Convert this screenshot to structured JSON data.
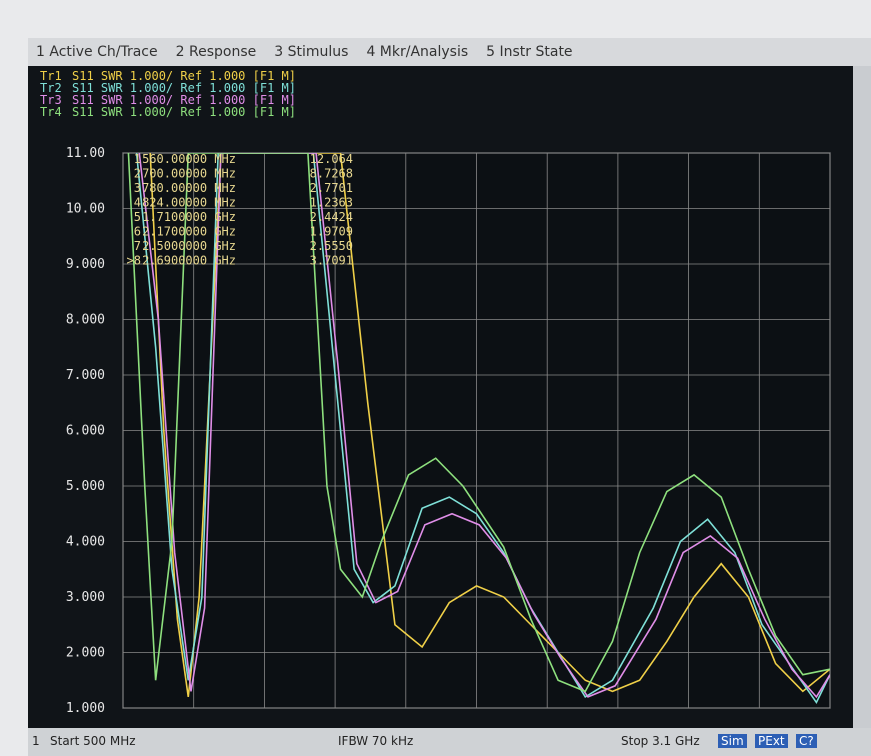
{
  "menu": [
    "1 Active Ch/Trace",
    "2 Response",
    "3 Stimulus",
    "4 Mkr/Analysis",
    "5 Instr State"
  ],
  "traces": [
    {
      "name": "Tr1",
      "text": "S11  SWR 1.000/ Ref 1.000 [F1 M]",
      "color": "#f0d048"
    },
    {
      "name": "Tr2",
      "text": "S11  SWR 1.000/ Ref 1.000 [F1 M]",
      "color": "#7fe0d8"
    },
    {
      "name": "Tr3",
      "text": "S11  SWR 1.000/ Ref 1.000 [F1 M]",
      "color": "#e08ee8"
    },
    {
      "name": "Tr4",
      "text": "S11  SWR 1.000/ Ref 1.000 [F1 M]",
      "color": "#8ee07e"
    }
  ],
  "marker_table": [
    [
      "1",
      "560.00000 MHz",
      "12.064"
    ],
    [
      "2",
      "700.00000 MHz",
      "8.7268"
    ],
    [
      "3",
      "780.00000 MHz",
      "2.7701"
    ],
    [
      "4",
      "824.00000 MHz",
      "1.2363"
    ],
    [
      "5",
      "1.7100000 GHz",
      "2.4424"
    ],
    [
      "6",
      "2.1700000 GHz",
      "1.9709"
    ],
    [
      "7",
      "2.5000000 GHz",
      "2.5550"
    ],
    [
      ">8",
      "2.6900000 GHz",
      "3.7091"
    ]
  ],
  "chart_data": {
    "type": "line",
    "xlim": [
      500,
      3100
    ],
    "xticks": [
      500,
      760,
      1020,
      1280,
      1540,
      1800,
      2060,
      2320,
      2580,
      2840,
      3100
    ],
    "ylim": [
      1,
      11
    ],
    "yticks": [
      {
        "value": 11,
        "label": "11.00"
      },
      {
        "value": 10,
        "label": "10.00"
      },
      {
        "value": 9,
        "label": "9.000"
      },
      {
        "value": 8,
        "label": "8.000"
      },
      {
        "value": 7,
        "label": "7.000"
      },
      {
        "value": 6,
        "label": "6.000"
      },
      {
        "value": 5,
        "label": "5.000"
      },
      {
        "value": 4,
        "label": "4.000"
      },
      {
        "value": 3,
        "label": "3.000"
      },
      {
        "value": 2,
        "label": "2.000"
      },
      {
        "value": 1,
        "label": "1.000"
      }
    ],
    "grid": true,
    "series": [
      {
        "name": "Tr1",
        "color": "#f0d048",
        "x": [
          600,
          650,
          700,
          740,
          780,
          820,
          860,
          1300,
          1400,
          1500,
          1600,
          1700,
          1800,
          1900,
          2000,
          2100,
          2200,
          2300,
          2400,
          2500,
          2600,
          2700,
          2800,
          2900,
          3000,
          3100
        ],
        "values": [
          11,
          6,
          2.6,
          1.2,
          3,
          7,
          11,
          11,
          6.5,
          2.5,
          2.1,
          2.9,
          3.2,
          3.0,
          2.5,
          2.0,
          1.5,
          1.3,
          1.5,
          2.2,
          3.0,
          3.6,
          3.0,
          1.8,
          1.3,
          1.7
        ]
      },
      {
        "name": "Tr2",
        "color": "#7fe0d8",
        "x": [
          550,
          620,
          680,
          740,
          790,
          850,
          1200,
          1280,
          1350,
          1420,
          1500,
          1600,
          1700,
          1800,
          1900,
          2000,
          2100,
          2200,
          2300,
          2450,
          2550,
          2650,
          2750,
          2850,
          2950,
          3050,
          3100
        ],
        "values": [
          11,
          7.5,
          3.5,
          1.5,
          3.0,
          11,
          11,
          7,
          3.5,
          2.9,
          3.2,
          4.6,
          4.8,
          4.5,
          3.8,
          2.8,
          2.0,
          1.2,
          1.5,
          2.8,
          4.0,
          4.4,
          3.8,
          2.5,
          1.8,
          1.1,
          1.6
        ]
      },
      {
        "name": "Tr3",
        "color": "#e08ee8",
        "x": [
          560,
          630,
          690,
          750,
          800,
          860,
          1210,
          1290,
          1360,
          1430,
          1510,
          1610,
          1710,
          1810,
          1910,
          2010,
          2110,
          2210,
          2310,
          2460,
          2560,
          2660,
          2760,
          2860,
          2960,
          3050,
          3100
        ],
        "values": [
          11,
          8,
          3.8,
          1.3,
          2.8,
          11,
          11,
          7.2,
          3.6,
          2.9,
          3.1,
          4.3,
          4.5,
          4.3,
          3.7,
          2.7,
          1.9,
          1.2,
          1.4,
          2.6,
          3.8,
          4.1,
          3.7,
          2.6,
          1.7,
          1.2,
          1.6
        ]
      },
      {
        "name": "Tr4",
        "color": "#8ee07e",
        "x": [
          520,
          580,
          620,
          680,
          740,
          1180,
          1250,
          1300,
          1380,
          1450,
          1550,
          1650,
          1750,
          1900,
          2000,
          2100,
          2200,
          2300,
          2400,
          2500,
          2600,
          2700,
          2800,
          2900,
          3000,
          3100
        ],
        "values": [
          11,
          5,
          1.5,
          4,
          11,
          11,
          5,
          3.5,
          3.0,
          4.0,
          5.2,
          5.5,
          5.0,
          3.9,
          2.6,
          1.5,
          1.3,
          2.2,
          3.8,
          4.9,
          5.2,
          4.8,
          3.5,
          2.3,
          1.6,
          1.7
        ]
      }
    ]
  },
  "status": {
    "channel": "1",
    "start": "Start 500 MHz",
    "ifbw": "IFBW 70 kHz",
    "stop": "Stop 3.1 GHz",
    "buttons": [
      "Sim",
      "PExt",
      "C?"
    ]
  }
}
